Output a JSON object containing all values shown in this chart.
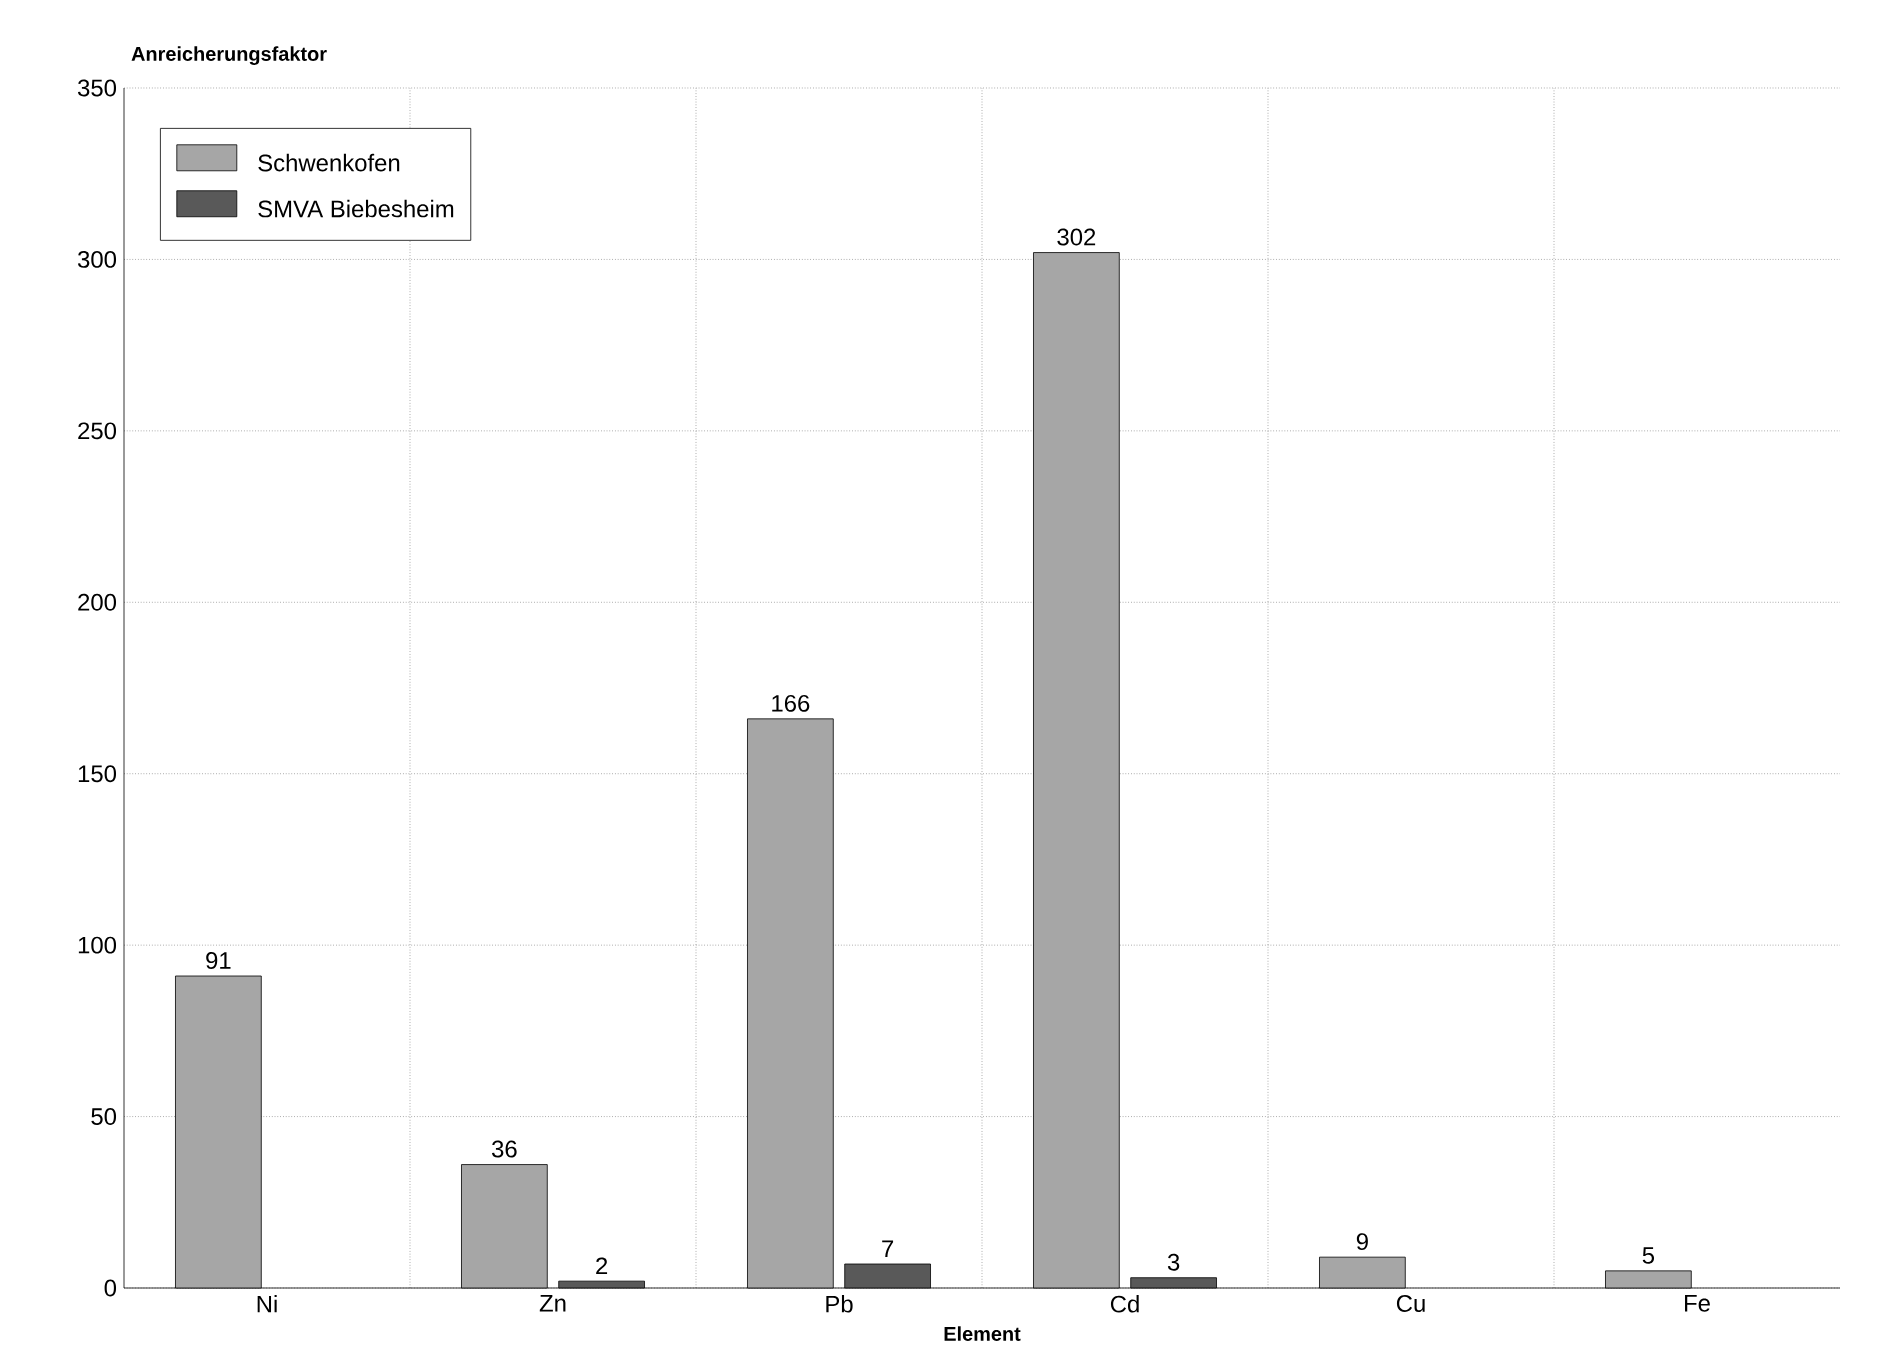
{
  "chart_data": {
    "type": "bar",
    "xlabel": "Element",
    "ylabel": "Anreicherungsfaktor",
    "categories": [
      "Ni",
      "Zn",
      "Pb",
      "Cd",
      "Cu",
      "Fe"
    ],
    "series": [
      {
        "name": "Schwenkofen",
        "color": "#a6a6a6",
        "values": [
          91,
          36,
          166,
          302,
          9,
          5
        ],
        "value_labels": [
          "91",
          "36",
          "166",
          "302",
          "9",
          "5"
        ]
      },
      {
        "name": "SMVA Biebesheim",
        "color": "#595959",
        "values": [
          null,
          2,
          7,
          3,
          null,
          null
        ],
        "value_labels": [
          null,
          "2",
          "7",
          "3",
          null,
          null
        ]
      }
    ],
    "ylim": [
      0,
      350
    ],
    "yticks": [
      0,
      50,
      100,
      150,
      200,
      250,
      300,
      350
    ],
    "grid": true,
    "legend": "top left"
  }
}
